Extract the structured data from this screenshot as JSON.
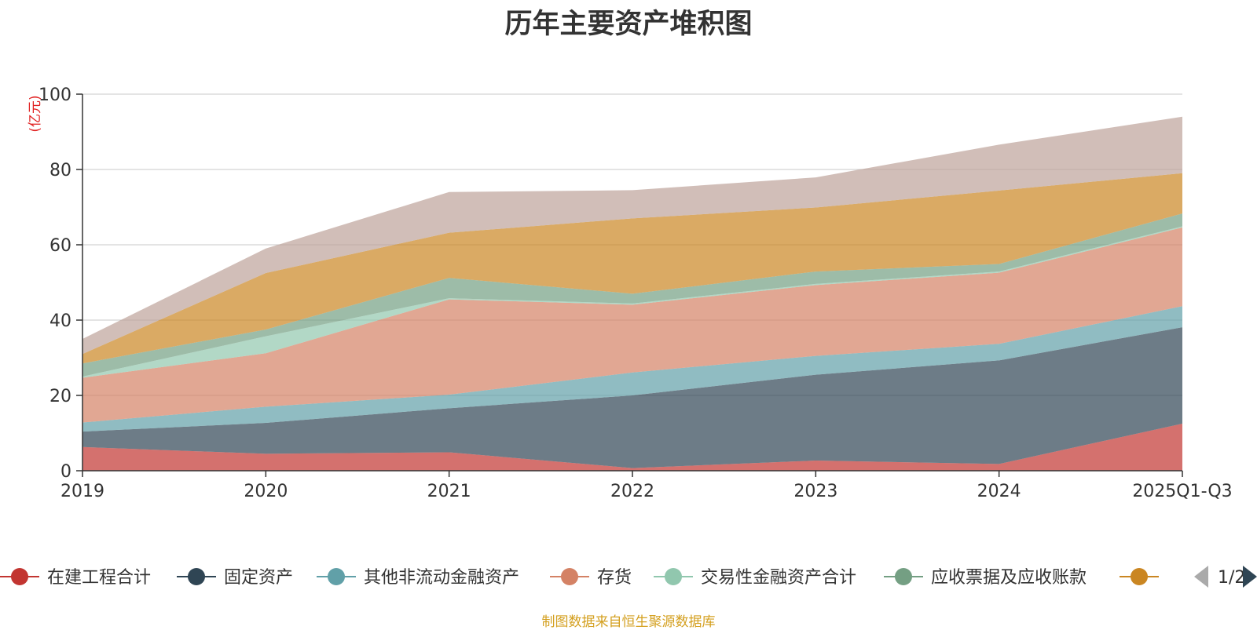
{
  "source_note": "制图数据来自恒生聚源数据库",
  "colors": {
    "title": "#333333",
    "axis": "#333333",
    "grid": "#c8c8c8",
    "unit": "#e02020",
    "source": "#d4a020",
    "pager_inactive": "#aaaaaa",
    "pager_active": "#2f4554"
  },
  "legend": {
    "pager_text": "1/2",
    "prev_icon": "triangle-left-icon",
    "next_icon": "triangle-right-icon"
  },
  "chart_data": {
    "type": "area",
    "stacked": true,
    "title": "历年主要资产堆积图",
    "ylabel": "(亿元)",
    "xlabel": "",
    "categories": [
      "2019",
      "2020",
      "2021",
      "2022",
      "2023",
      "2024",
      "2025Q1-Q3"
    ],
    "ylim": [
      0,
      100
    ],
    "yticks": [
      0,
      20,
      40,
      60,
      80,
      100
    ],
    "grid": true,
    "legend_position": "bottom",
    "series": [
      {
        "name": "在建工程合计",
        "color": "#c23531",
        "values": [
          6.3,
          4.5,
          4.9,
          0.7,
          2.7,
          1.8,
          12.5
        ]
      },
      {
        "name": "固定资产",
        "color": "#2f4554",
        "values": [
          4.1,
          8.2,
          11.7,
          19.3,
          22.8,
          27.5,
          25.6
        ]
      },
      {
        "name": "其他非流动金融资产",
        "color": "#61a0a8",
        "values": [
          2.4,
          4.3,
          3.6,
          6.1,
          5.0,
          4.4,
          5.6
        ]
      },
      {
        "name": "存货",
        "color": "#d48265",
        "values": [
          11.9,
          14.2,
          25.3,
          18.0,
          18.8,
          18.9,
          20.9
        ]
      },
      {
        "name": "交易性金融资产合计",
        "color": "#91c7ae",
        "values": [
          0.3,
          4.5,
          0.3,
          0.3,
          0.3,
          0.3,
          0.3
        ]
      },
      {
        "name": "应收票据及应收账款",
        "color": "#749f83",
        "values": [
          3.5,
          1.8,
          5.4,
          2.6,
          3.3,
          2.0,
          3.4
        ]
      },
      {
        "name": "",
        "color": "#ca8622",
        "values": [
          2.5,
          15.0,
          12.0,
          20.0,
          17.0,
          19.5,
          10.7
        ]
      },
      {
        "name": "",
        "color": "#bda29a",
        "values": [
          4.0,
          6.5,
          10.8,
          7.5,
          8.0,
          12.2,
          15.0
        ]
      }
    ],
    "legend_visible_count": 7
  }
}
